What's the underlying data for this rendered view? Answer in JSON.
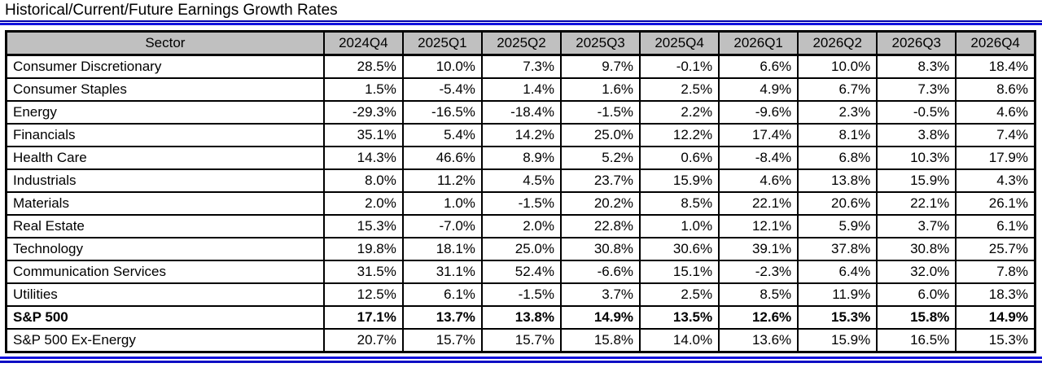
{
  "title": "Historical/Current/Future Earnings Growth Rates",
  "colors": {
    "rule_blue": "#1212dd",
    "header_gray": "#c0c0c0",
    "border_black": "#000000"
  },
  "chart_data": {
    "type": "table",
    "title": "Historical/Current/Future Earnings Growth Rates",
    "columns": [
      "Sector",
      "2024Q4",
      "2025Q1",
      "2025Q2",
      "2025Q3",
      "2025Q4",
      "2026Q1",
      "2026Q2",
      "2026Q3",
      "2026Q4"
    ],
    "rows": [
      {
        "sector": "Consumer Discretionary",
        "bold": false,
        "values": [
          "28.5%",
          "10.0%",
          "7.3%",
          "9.7%",
          "-0.1%",
          "6.6%",
          "10.0%",
          "8.3%",
          "18.4%"
        ]
      },
      {
        "sector": "Consumer Staples",
        "bold": false,
        "values": [
          "1.5%",
          "-5.4%",
          "1.4%",
          "1.6%",
          "2.5%",
          "4.9%",
          "6.7%",
          "7.3%",
          "8.6%"
        ]
      },
      {
        "sector": "Energy",
        "bold": false,
        "values": [
          "-29.3%",
          "-16.5%",
          "-18.4%",
          "-1.5%",
          "2.2%",
          "-9.6%",
          "2.3%",
          "-0.5%",
          "4.6%"
        ]
      },
      {
        "sector": "Financials",
        "bold": false,
        "values": [
          "35.1%",
          "5.4%",
          "14.2%",
          "25.0%",
          "12.2%",
          "17.4%",
          "8.1%",
          "3.8%",
          "7.4%"
        ]
      },
      {
        "sector": "Health Care",
        "bold": false,
        "values": [
          "14.3%",
          "46.6%",
          "8.9%",
          "5.2%",
          "0.6%",
          "-8.4%",
          "6.8%",
          "10.3%",
          "17.9%"
        ]
      },
      {
        "sector": "Industrials",
        "bold": false,
        "values": [
          "8.0%",
          "11.2%",
          "4.5%",
          "23.7%",
          "15.9%",
          "4.6%",
          "13.8%",
          "15.9%",
          "4.3%"
        ]
      },
      {
        "sector": "Materials",
        "bold": false,
        "values": [
          "2.0%",
          "1.0%",
          "-1.5%",
          "20.2%",
          "8.5%",
          "22.1%",
          "20.6%",
          "22.1%",
          "26.1%"
        ]
      },
      {
        "sector": "Real Estate",
        "bold": false,
        "values": [
          "15.3%",
          "-7.0%",
          "2.0%",
          "22.8%",
          "1.0%",
          "12.1%",
          "5.9%",
          "3.7%",
          "6.1%"
        ]
      },
      {
        "sector": "Technology",
        "bold": false,
        "values": [
          "19.8%",
          "18.1%",
          "25.0%",
          "30.8%",
          "30.6%",
          "39.1%",
          "37.8%",
          "30.8%",
          "25.7%"
        ]
      },
      {
        "sector": "Communication Services",
        "bold": false,
        "values": [
          "31.5%",
          "31.1%",
          "52.4%",
          "-6.6%",
          "15.1%",
          "-2.3%",
          "6.4%",
          "32.0%",
          "7.8%"
        ]
      },
      {
        "sector": "Utilities",
        "bold": false,
        "values": [
          "12.5%",
          "6.1%",
          "-1.5%",
          "3.7%",
          "2.5%",
          "8.5%",
          "11.9%",
          "6.0%",
          "18.3%"
        ]
      },
      {
        "sector": "S&P 500",
        "bold": true,
        "values": [
          "17.1%",
          "13.7%",
          "13.8%",
          "14.9%",
          "13.5%",
          "12.6%",
          "15.3%",
          "15.8%",
          "14.9%"
        ]
      },
      {
        "sector": "S&P 500 Ex-Energy",
        "bold": false,
        "values": [
          "20.7%",
          "15.7%",
          "15.7%",
          "15.8%",
          "14.0%",
          "13.6%",
          "15.9%",
          "16.5%",
          "15.3%"
        ]
      }
    ]
  }
}
